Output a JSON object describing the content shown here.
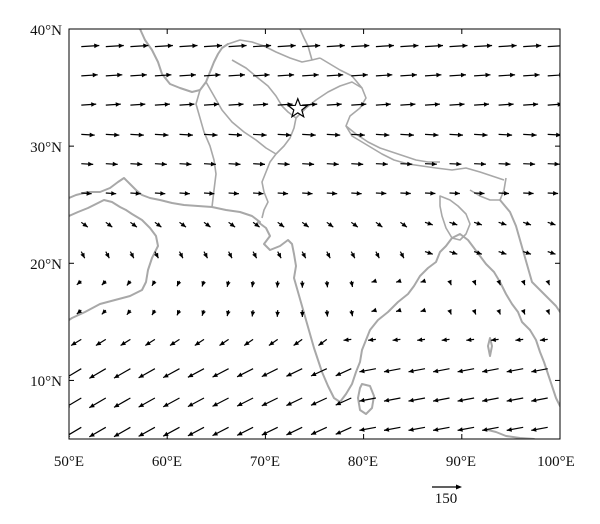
{
  "map": {
    "x_ticks": [
      "50°E",
      "60°E",
      "70°E",
      "80°E",
      "90°E",
      "100°E"
    ],
    "y_ticks": [
      "40°N",
      "30°N",
      "20°N",
      "10°N"
    ],
    "x_tick_values": [
      50,
      60,
      70,
      80,
      90,
      100
    ],
    "y_tick_values": [
      40,
      30,
      20,
      10
    ],
    "extent": {
      "lon": [
        50,
        100
      ],
      "lat": [
        5,
        40
      ]
    },
    "reference_vector": {
      "label": "150",
      "magnitude": 150
    },
    "marker": {
      "type": "star",
      "lon": 73.3,
      "lat": 33.2
    },
    "colors": {
      "coast": "#a8a8a8",
      "vectors": "#000000",
      "frame": "#000000"
    }
  }
}
